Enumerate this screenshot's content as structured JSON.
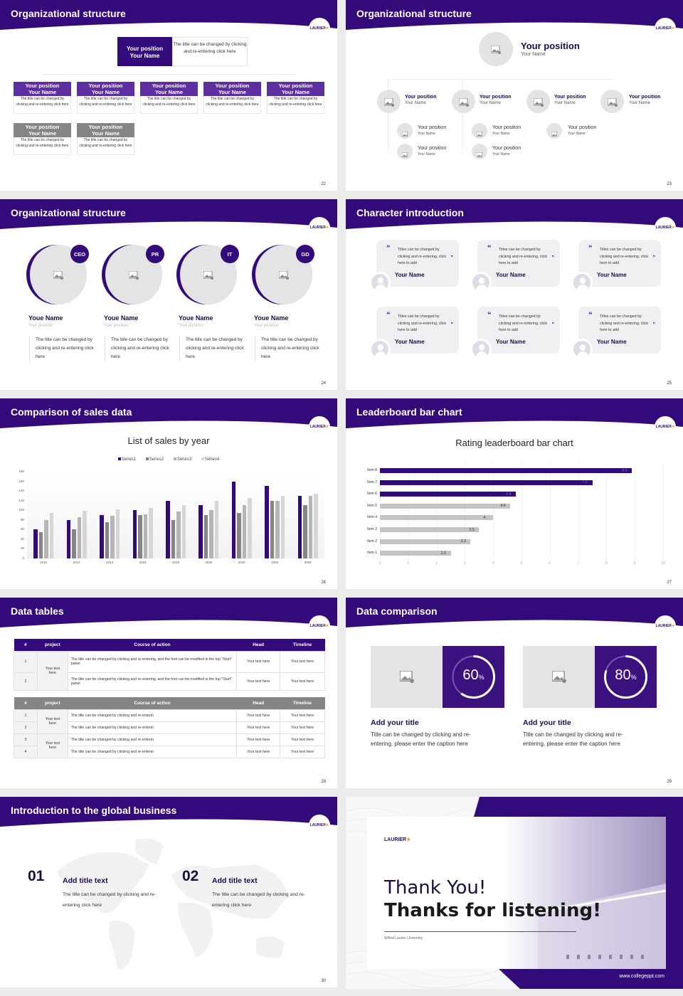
{
  "colors": {
    "brand_purple": "#330a7a",
    "mid_purple": "#5d2fa0",
    "gray": "#858585",
    "light_gray": "#e4e3e6"
  },
  "logo": {
    "text": "LAURIER",
    "icon": "maple-leaf-icon"
  },
  "slides": [
    {
      "title": "Organizational structure",
      "page": "22",
      "top": {
        "position": "Your position",
        "name": "Your Name",
        "desc": "The title can be changed by clicking and re-entering click here"
      },
      "row1": [
        {
          "position": "Your position",
          "name": "Your Name",
          "desc": "The title can be changed by clicking and re-entering click here"
        },
        {
          "position": "Your position",
          "name": "Your Name",
          "desc": "The title can be changed by clicking and re-entering click here"
        },
        {
          "position": "Your position",
          "name": "Your Name",
          "desc": "The title can be changed by clicking and re-entering click here"
        },
        {
          "position": "Your position",
          "name": "Your Name",
          "desc": "The title can be changed by clicking and re-entering click here"
        },
        {
          "position": "Your position",
          "name": "Your Name",
          "desc": "The title can be changed by clicking and re-entering click here"
        }
      ],
      "row2": [
        {
          "position": "Your position",
          "name": "Your Name",
          "desc": "The title can be changed by clicking and re-entering click here"
        },
        {
          "position": "Your position",
          "name": "Your Name",
          "desc": "The title can be changed by clicking and re-entering click here"
        }
      ]
    },
    {
      "title": "Organizational structure",
      "page": "23",
      "top": {
        "position": "Your position",
        "name": "Your Name"
      },
      "level1": [
        {
          "position": "Your position",
          "name": "Your Name"
        },
        {
          "position": "Your position",
          "name": "Your Name"
        },
        {
          "position": "Your position",
          "name": "Your Name"
        },
        {
          "position": "Your position",
          "name": "Your Name"
        }
      ],
      "level2": [
        {
          "position": "Your position",
          "name": "Your Name"
        },
        {
          "position": "Your position",
          "name": "Your Name"
        },
        {
          "position": "Your position",
          "name": "Your Name"
        },
        {
          "position": "Your position",
          "name": "Your Name"
        },
        {
          "position": "Your position",
          "name": "Your Name"
        }
      ]
    },
    {
      "title": "Organizational structure",
      "page": "24",
      "members": [
        {
          "tag": "CEO",
          "name": "Youe Name",
          "position": "Your position",
          "desc": "The title can be changed by clicking and re-entering click here"
        },
        {
          "tag": "PR",
          "name": "Youe Name",
          "position": "Your position",
          "desc": "The title can be changed by clicking and re-entering click here"
        },
        {
          "tag": "IT",
          "name": "Youe Name",
          "position": "Your position",
          "desc": "The title can be changed by clicking and re-entering click here"
        },
        {
          "tag": "GD",
          "name": "Youe Name",
          "position": "Your position",
          "desc": "The title can be changed by clicking and re-entering click here"
        }
      ]
    },
    {
      "title": "Character introduction",
      "page": "25",
      "open_quote": "“",
      "close_quote": "”",
      "cards": [
        {
          "text": "Titles can be changed by clicking and re-entering, click here to add",
          "name": "Your Name"
        },
        {
          "text": "Titles can be changed by clicking and re-entering, click here to add",
          "name": "Your Name"
        },
        {
          "text": "Titles can be changed by clicking and re-entering, click here to add",
          "name": "Your Name"
        },
        {
          "text": "Titles can be changed by clicking and re-entering, click here to add",
          "name": "Your Name"
        },
        {
          "text": "Titles can be changed by clicking and re-entering, click here to add",
          "name": "Your Name"
        },
        {
          "text": "Titles can be changed by clicking and re-entering, click here to add",
          "name": "Your Name"
        }
      ]
    },
    {
      "title": "Comparison of sales data",
      "page": "26"
    },
    {
      "title": "Leaderboard bar chart",
      "page": "27"
    },
    {
      "title": "Data tables",
      "page": "28",
      "table1": {
        "headers": [
          "#",
          "project",
          "Course of action",
          "Head",
          "Timeline"
        ],
        "project": "Your text here",
        "rows": [
          {
            "num": "1",
            "action": "The title can be changed by clicking and re-entering, and the font can be modified in the top \"Start\" panel",
            "head": "Your text here",
            "timeline": "Your text here"
          },
          {
            "num": "2",
            "action": "The title can be changed by clicking and re-entering, and the font can be modified in the top \"Start\" panel",
            "head": "Your text here",
            "timeline": "Your text here"
          }
        ]
      },
      "table2": {
        "headers": [
          "#",
          "project",
          "Course of action",
          "Head",
          "Timeline"
        ],
        "projects": [
          "Your text here",
          "Your text here"
        ],
        "rows": [
          {
            "num": "1",
            "action": "The title can be changed by clicking and re-enterin",
            "head": "Your text here",
            "timeline": "Your text here"
          },
          {
            "num": "2",
            "action": "The title can be changed by clicking and re-enterin",
            "head": "Your text here",
            "timeline": "Your text here"
          },
          {
            "num": "3",
            "action": "The title can be changed by clicking and re-enterin",
            "head": "Your text here",
            "timeline": "Your text here"
          },
          {
            "num": "4",
            "action": "The title can be changed by clicking and re-enterin",
            "head": "Your text here",
            "timeline": "Your text here"
          }
        ]
      }
    },
    {
      "title": "Data comparison",
      "page": "29",
      "items": [
        {
          "value": "60",
          "unit": "%",
          "percent": 60,
          "title": "Add your title",
          "desc": "Title can be changed by clicking and re-entering, please enter the caption here"
        },
        {
          "value": "80",
          "unit": "%",
          "percent": 80,
          "title": "Add your title",
          "desc": "Title can be changed by clicking and re-entering, please enter the caption here"
        }
      ]
    },
    {
      "title": "Introduction to the global business",
      "page": "30",
      "items": [
        {
          "num": "01",
          "title": "Add title text",
          "desc": "The title can be changed by clicking and re-entering click here"
        },
        {
          "num": "02",
          "title": "Add title text",
          "desc": "The title can be changed by clicking and re-entering click here"
        }
      ]
    },
    {
      "logo": "LAURIER",
      "line1": "Thank You!",
      "line2": "Thanks for listening!",
      "subtitle": "Wilfrid Laurier University",
      "url": "www.collegeppt.com"
    }
  ],
  "chart_data": [
    {
      "type": "bar",
      "title": "List of sales by year",
      "categories": [
        "2010",
        "2012",
        "2014",
        "2016",
        "2018",
        "2020",
        "2022",
        "2024",
        "2026"
      ],
      "series": [
        {
          "name": "Series1",
          "color": "#330a7a",
          "values": [
            60,
            80,
            90,
            100,
            120,
            110,
            160,
            150,
            130
          ]
        },
        {
          "name": "Series2",
          "color": "#858585",
          "values": [
            55,
            60,
            75,
            90,
            80,
            90,
            95,
            120,
            110
          ]
        },
        {
          "name": "Series3",
          "color": "#b5b5b5",
          "values": [
            80,
            86,
            88,
            92,
            98,
            100,
            110,
            120,
            130
          ]
        },
        {
          "name": "Series4",
          "color": "#d6d6d6",
          "values": [
            95,
            99,
            102,
            105,
            110,
            120,
            126,
            130,
            135
          ]
        }
      ],
      "yticks": [
        "180",
        "160",
        "140",
        "120",
        "100",
        "80",
        "60",
        "40",
        "20",
        "0"
      ],
      "ylim": [
        0,
        180
      ],
      "legend_position": "top",
      "grid": false
    },
    {
      "type": "bar",
      "orientation": "horizontal",
      "title": "Rating leaderboard bar chart",
      "categories": [
        "Item 8",
        "Item 7",
        "Item 6",
        "Item 5",
        "Item 4",
        "Item 3",
        "Item 2",
        "Item 1"
      ],
      "values": [
        8.9,
        7.5,
        4.8,
        4.6,
        4,
        3.5,
        3.2,
        2.5
      ],
      "labels": [
        "8.9",
        "7.5",
        "4.8",
        "4.6",
        "4",
        "3.5",
        "3.2",
        "2.5"
      ],
      "highlight_top": 3,
      "xticks": [
        "0",
        "1",
        "2",
        "3",
        "4",
        "5",
        "6",
        "7",
        "8",
        "9",
        "10"
      ],
      "xlim": [
        0,
        10
      ],
      "grid": true
    }
  ]
}
